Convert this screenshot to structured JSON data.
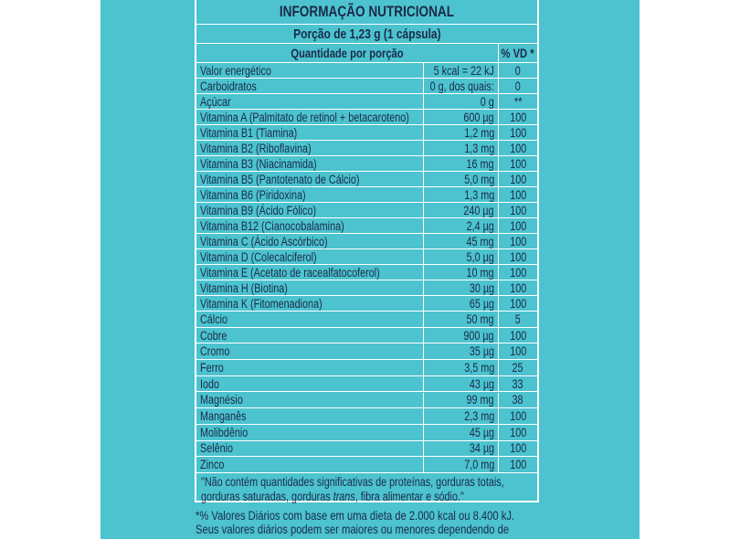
{
  "title": "INFORMAÇÃO NUTRICIONAL",
  "portion": "Porção de 1,23 g (1 cápsula)",
  "header": {
    "quantity": "Quantidade por porção",
    "vd": "% VD *"
  },
  "rows": [
    [
      "Valor energético",
      "5 kcal = 22 kJ",
      "0"
    ],
    [
      "Carboidratos",
      "0 g, dos quais:",
      "0"
    ],
    [
      "Açúcar",
      "0 g",
      "**"
    ],
    [
      "Vitamina A (Palmitato de retinol + betacaroteno)",
      "600 µg",
      "100"
    ],
    [
      "Vitamina B1 (Tiamina)",
      "1,2 mg",
      "100"
    ],
    [
      "Vitamina B2 (Riboflavina)",
      "1,3 mg",
      "100"
    ],
    [
      "Vitamina B3 (Niacinamida)",
      "16 mg",
      "100"
    ],
    [
      "Vitamina B5 (Pantotenato de Cálcio)",
      "5,0 mg",
      "100"
    ],
    [
      "Vitamina B6 (Piridoxina)",
      "1,3 mg",
      "100"
    ],
    [
      "Vitamina B9 (Ácido Fólico)",
      "240 µg",
      "100"
    ],
    [
      "Vitamina B12 (Cianocobalamina)",
      "2,4 µg",
      "100"
    ],
    [
      "Vitamina C (Ácido Ascórbico)",
      "45 mg",
      "100"
    ],
    [
      "Vitamina D (Colecalciferol)",
      "5,0 µg",
      "100"
    ],
    [
      "Vitamina E (Acetato de racealfatocoferol)",
      "10 mg",
      "100"
    ],
    [
      "Vitamina H (Biotina)",
      "30 µg",
      "100"
    ],
    [
      "Vitamina K (Fitomenadiona)",
      "65 µg",
      "100"
    ],
    [
      "Cálcio",
      "50 mg",
      "5"
    ],
    [
      "Cobre",
      "900 µg",
      "100"
    ],
    [
      "Cromo",
      "35 µg",
      "100"
    ],
    [
      "Ferro",
      "3,5 mg",
      "25"
    ],
    [
      "Iodo",
      "43 µg",
      "33"
    ],
    [
      "Magnésio",
      "99 mg",
      "38"
    ],
    [
      "Manganês",
      "2,3 mg",
      "100"
    ],
    [
      "Molibdênio",
      "45 µg",
      "100"
    ],
    [
      "Selênio",
      "34 µg",
      "100"
    ],
    [
      "Zinco",
      "7,0 mg",
      "100"
    ]
  ],
  "footnote": {
    "line1": "\"Não contém quantidades significativas de proteínas, gorduras totais,",
    "line2_before": "gorduras saturadas, gorduras ",
    "line2_italic": "trans",
    "line2_after": ", fibra alimentar e sódio.\""
  },
  "notes": [
    "*% Valores Diários com base em uma dieta de 2.000 kcal ou 8.400 kJ.",
    "Seus valores diários podem ser maiores ou menores dependendo de"
  ]
}
